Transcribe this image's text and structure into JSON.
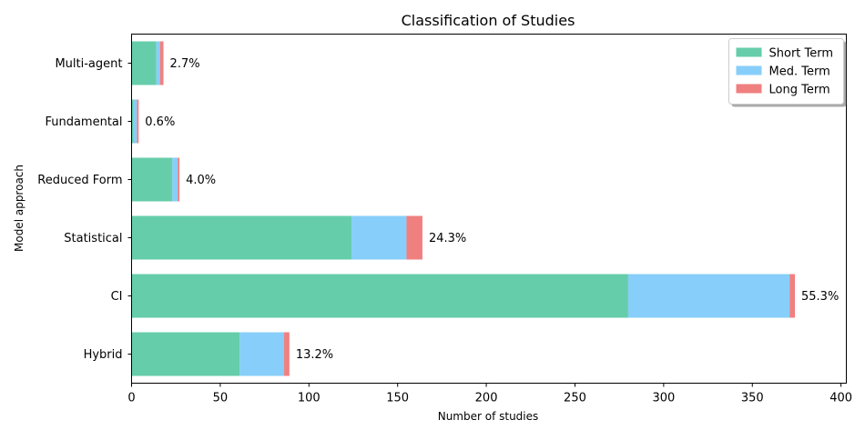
{
  "chart_data": {
    "type": "bar",
    "orientation": "horizontal",
    "stacked": true,
    "title": "Classification of Studies",
    "xlabel": "Number of studies",
    "ylabel": "Model approach",
    "xlim": [
      0,
      403
    ],
    "xticks": [
      0,
      50,
      100,
      150,
      200,
      250,
      300,
      350,
      400
    ],
    "grid": false,
    "legend_position": "top-right",
    "categories": [
      "Hybrid",
      "CI",
      "Statistical",
      "Reduced Form",
      "Fundamental",
      "Multi-agent"
    ],
    "series": [
      {
        "name": "Short Term",
        "color": "#66cdaa",
        "values": [
          61,
          280,
          124,
          23,
          1,
          14
        ]
      },
      {
        "name": "Med. Term",
        "color": "#87cefa",
        "values": [
          25,
          91,
          31,
          3,
          2,
          2
        ]
      },
      {
        "name": "Long Term",
        "color": "#f08080",
        "values": [
          3,
          3,
          9,
          1,
          1,
          2
        ]
      }
    ],
    "bar_labels": [
      "13.2%",
      "55.3%",
      "24.3%",
      "4.0%",
      "0.6%",
      "2.7%"
    ]
  }
}
